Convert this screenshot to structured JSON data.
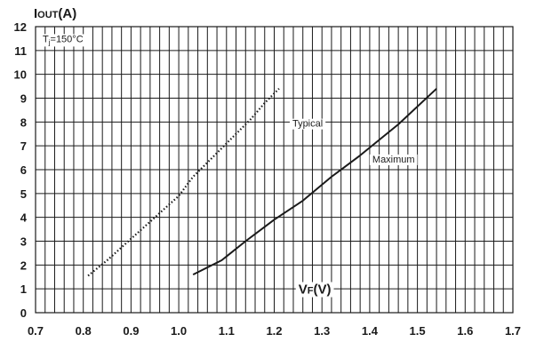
{
  "chart_data": {
    "type": "line",
    "title": "",
    "xlabel": "VF(V)",
    "ylabel": "IOUT(A)",
    "xlim": [
      0.7,
      1.7
    ],
    "ylim": [
      0,
      12
    ],
    "x_ticks": [
      "0.7",
      "0.8",
      "0.9",
      "1.0",
      "1.1",
      "1.2",
      "1.3",
      "1.4",
      "1.5",
      "1.6",
      "1.7"
    ],
    "y_ticks": [
      "0",
      "1",
      "2",
      "3",
      "4",
      "5",
      "6",
      "7",
      "8",
      "9",
      "10",
      "11",
      "12"
    ],
    "grid": true,
    "legend": "none",
    "condition_label": "Tj=150°C",
    "series": [
      {
        "name": "Typical",
        "style": "dotted",
        "color": "#1a1a1a",
        "x": [
          0.81,
          0.85,
          0.9,
          0.95,
          1.0,
          1.03,
          1.07,
          1.11,
          1.15,
          1.18,
          1.21
        ],
        "y": [
          1.55,
          2.2,
          3.1,
          4.0,
          4.9,
          5.7,
          6.5,
          7.3,
          8.1,
          8.8,
          9.4
        ]
      },
      {
        "name": "Maximum",
        "style": "solid",
        "color": "#1a1a1a",
        "x": [
          1.03,
          1.09,
          1.14,
          1.2,
          1.26,
          1.32,
          1.38,
          1.46,
          1.54
        ],
        "y": [
          1.6,
          2.2,
          3.0,
          3.9,
          4.7,
          5.7,
          6.6,
          7.9,
          9.4
        ]
      }
    ],
    "annotations": [
      {
        "text": "Typical",
        "series": "Typical"
      },
      {
        "text": "Maximum",
        "series": "Maximum"
      }
    ]
  }
}
